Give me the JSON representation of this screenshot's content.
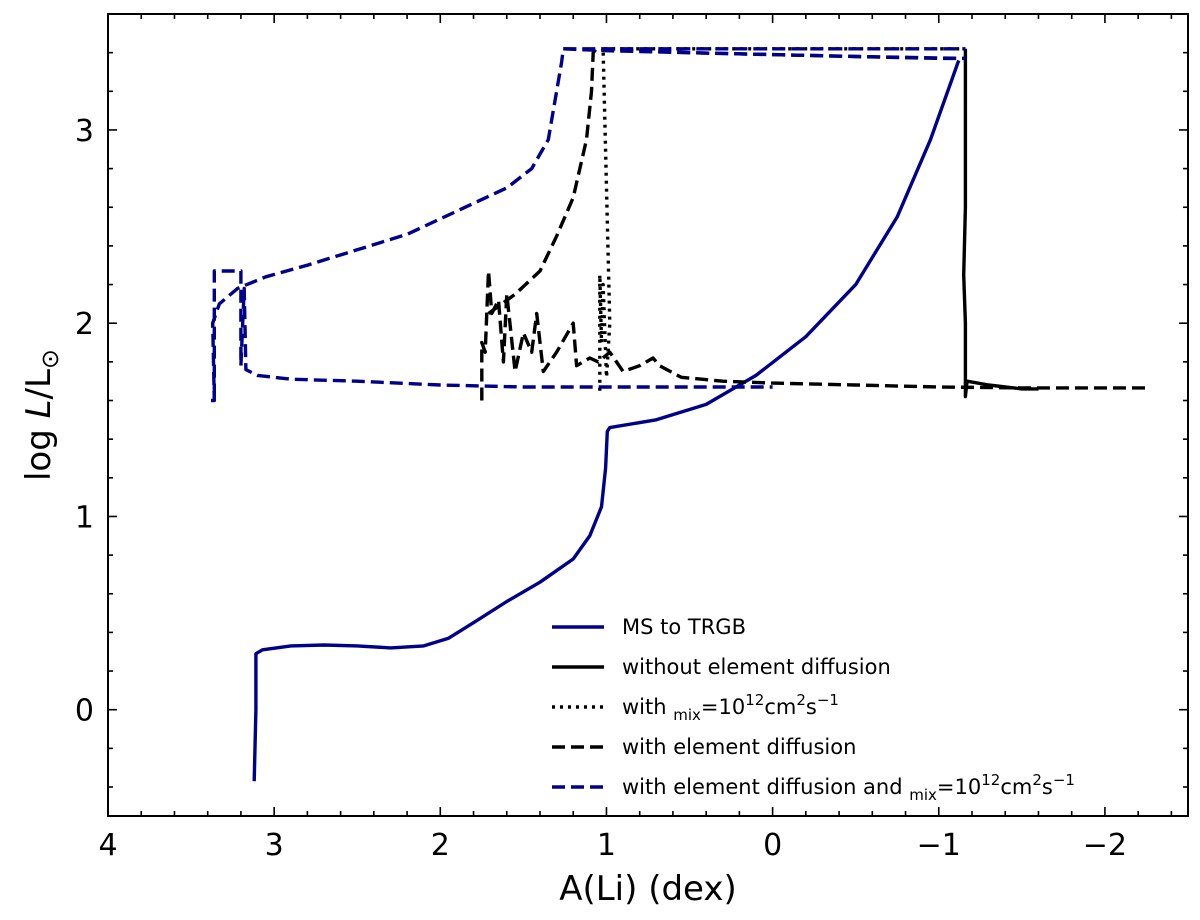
{
  "chart_data": {
    "type": "line",
    "xlabel": "A(Li) (dex)",
    "ylabel_prefix": "log ",
    "ylabel_var": "L",
    "ylabel_suffix": "/L",
    "ylabel_sub": "⊙",
    "xlim": [
      4.0,
      -2.5
    ],
    "ylim": [
      -0.55,
      3.6
    ],
    "x_ticks": [
      4,
      3,
      2,
      1,
      0,
      -1,
      -2
    ],
    "x_tick_labels": [
      "4",
      "3",
      "2",
      "1",
      "0",
      "−1",
      "−2"
    ],
    "y_ticks": [
      0,
      1,
      2,
      3
    ],
    "y_tick_labels": [
      "0",
      "1",
      "2",
      "3"
    ],
    "grid": false,
    "legend_position": "lower-right",
    "series": [
      {
        "name": "MS to TRGB",
        "color": "#00008b",
        "dash": "solid",
        "points": [
          [
            3.12,
            -0.37
          ],
          [
            3.11,
            0.0
          ],
          [
            3.11,
            0.29
          ],
          [
            3.07,
            0.31
          ],
          [
            2.9,
            0.33
          ],
          [
            2.7,
            0.335
          ],
          [
            2.5,
            0.33
          ],
          [
            2.3,
            0.32
          ],
          [
            2.1,
            0.33
          ],
          [
            1.95,
            0.37
          ],
          [
            1.8,
            0.45
          ],
          [
            1.6,
            0.56
          ],
          [
            1.4,
            0.66
          ],
          [
            1.2,
            0.78
          ],
          [
            1.1,
            0.9
          ],
          [
            1.03,
            1.05
          ],
          [
            1.005,
            1.25
          ],
          [
            0.995,
            1.44
          ],
          [
            0.98,
            1.46
          ],
          [
            0.7,
            1.5
          ],
          [
            0.4,
            1.58
          ],
          [
            0.1,
            1.73
          ],
          [
            -0.2,
            1.93
          ],
          [
            -0.5,
            2.2
          ],
          [
            -0.75,
            2.55
          ],
          [
            -0.95,
            2.95
          ],
          [
            -1.12,
            3.36
          ]
        ]
      },
      {
        "name": "without element diffusion",
        "color": "#000000",
        "dash": "solid",
        "points": [
          [
            -1.16,
            3.42
          ],
          [
            -1.16,
            2.6
          ],
          [
            -1.15,
            2.25
          ],
          [
            -1.16,
            2.0
          ],
          [
            -1.16,
            1.62
          ],
          [
            -1.17,
            1.7
          ],
          [
            -1.3,
            1.68
          ],
          [
            -1.5,
            1.66
          ],
          [
            -1.6,
            1.66
          ]
        ]
      },
      {
        "name": "with D_mix=10^12cm^2s^-1",
        "label_html": "with <i>D</i><tspan dy='6' font-size='15'>mix</tspan><tspan dy='-6'>=10</tspan><tspan dy='-9' font-size='15'>12</tspan><tspan dy='9'>cm</tspan><tspan dy='-9' font-size='15'>2</tspan><tspan dy='9'>s</tspan><tspan dy='-9' font-size='15'>−1</tspan>",
        "color": "#000000",
        "dash": "dotted",
        "points": [
          [
            1.04,
            1.65
          ],
          [
            1.04,
            2.25
          ],
          [
            1.03,
            1.9
          ],
          [
            1.02,
            2.2
          ],
          [
            1.0,
            1.72
          ],
          [
            0.98,
            2.0
          ],
          [
            1.02,
            3.42
          ],
          [
            0.5,
            3.42
          ],
          [
            0.0,
            3.42
          ],
          [
            -0.5,
            3.42
          ],
          [
            -1.0,
            3.42
          ],
          [
            -1.16,
            3.42
          ]
        ]
      },
      {
        "name": "with element diffusion",
        "color": "#000000",
        "dash": "dashed",
        "points": [
          [
            1.75,
            1.6
          ],
          [
            1.75,
            1.9
          ],
          [
            1.73,
            1.85
          ],
          [
            1.71,
            2.27
          ],
          [
            1.69,
            2.05
          ],
          [
            1.65,
            2.12
          ],
          [
            1.62,
            1.8
          ],
          [
            1.6,
            2.15
          ],
          [
            1.55,
            1.75
          ],
          [
            1.5,
            1.95
          ],
          [
            1.45,
            1.85
          ],
          [
            1.42,
            2.05
          ],
          [
            1.38,
            1.75
          ],
          [
            1.3,
            1.85
          ],
          [
            1.2,
            2.0
          ],
          [
            1.18,
            1.78
          ],
          [
            1.1,
            1.82
          ],
          [
            1.05,
            1.8
          ],
          [
            0.98,
            1.85
          ],
          [
            0.9,
            1.75
          ],
          [
            0.8,
            1.78
          ],
          [
            0.72,
            1.82
          ],
          [
            0.68,
            1.78
          ],
          [
            0.55,
            1.72
          ],
          [
            0.3,
            1.7
          ],
          [
            0.0,
            1.69
          ],
          [
            -0.5,
            1.68
          ],
          [
            -1.0,
            1.67
          ],
          [
            -1.5,
            1.665
          ],
          [
            -2.25,
            1.665
          ],
          [
            -2.2,
            1.665
          ]
        ]
      },
      {
        "name": "with element diffusion (pre-jump)",
        "legend": false,
        "color": "#000000",
        "dash": "dashed",
        "points": [
          [
            1.71,
            2.05
          ],
          [
            1.55,
            2.15
          ],
          [
            1.4,
            2.27
          ],
          [
            1.3,
            2.45
          ],
          [
            1.2,
            2.65
          ],
          [
            1.12,
            2.95
          ],
          [
            1.09,
            3.2
          ],
          [
            1.08,
            3.4
          ],
          [
            1.06,
            3.42
          ],
          [
            0.5,
            3.4
          ],
          [
            0.0,
            3.39
          ],
          [
            -0.5,
            3.38
          ],
          [
            -1.0,
            3.37
          ],
          [
            -1.16,
            3.37
          ]
        ]
      },
      {
        "name": "with element diffusion and D_mix=10^12cm^2s^-1",
        "label_html": "with element diffusion and <i>D</i><tspan dy='6' font-size='15'>mix</tspan><tspan dy='-6'>=10</tspan><tspan dy='-9' font-size='15'>12</tspan><tspan dy='9'>cm</tspan><tspan dy='-9' font-size='15'>2</tspan><tspan dy='9'>s</tspan><tspan dy='-9' font-size='15'>−1</tspan>",
        "color": "#00008b",
        "dash": "dashed",
        "points": [
          [
            3.38,
            1.6
          ],
          [
            3.36,
            1.6
          ],
          [
            3.37,
            2.0
          ],
          [
            3.33,
            2.1
          ],
          [
            3.22,
            2.18
          ],
          [
            3.05,
            2.24
          ],
          [
            2.8,
            2.3
          ],
          [
            2.5,
            2.38
          ],
          [
            2.2,
            2.46
          ],
          [
            1.9,
            2.58
          ],
          [
            1.6,
            2.7
          ],
          [
            1.45,
            2.8
          ],
          [
            1.35,
            2.95
          ],
          [
            1.3,
            3.2
          ],
          [
            1.27,
            3.35
          ],
          [
            1.26,
            3.42
          ],
          [
            1.0,
            3.42
          ],
          [
            0.5,
            3.42
          ],
          [
            0.0,
            3.42
          ],
          [
            -0.5,
            3.42
          ],
          [
            -1.16,
            3.42
          ]
        ]
      },
      {
        "name": "with element diffusion and D_mix (loop)",
        "legend": false,
        "color": "#00008b",
        "dash": "dashed",
        "points": [
          [
            3.36,
            1.62
          ],
          [
            3.36,
            2.27
          ],
          [
            3.2,
            2.27
          ],
          [
            3.2,
            1.78
          ],
          [
            3.18,
            2.18
          ],
          [
            3.17,
            1.76
          ],
          [
            3.1,
            1.73
          ],
          [
            2.9,
            1.71
          ],
          [
            2.5,
            1.7
          ],
          [
            2.0,
            1.68
          ],
          [
            1.5,
            1.67
          ],
          [
            1.0,
            1.67
          ],
          [
            0.5,
            1.67
          ],
          [
            0.0,
            1.67
          ]
        ]
      },
      {
        "name": "with element diffusion and D_mix (top)",
        "legend": false,
        "color": "#00008b",
        "dash": "dashed",
        "points": [
          [
            1.26,
            3.42
          ],
          [
            1.0,
            3.41
          ],
          [
            0.5,
            3.4
          ],
          [
            0.0,
            3.39
          ],
          [
            -0.5,
            3.38
          ],
          [
            -1.16,
            3.37
          ]
        ]
      }
    ]
  }
}
